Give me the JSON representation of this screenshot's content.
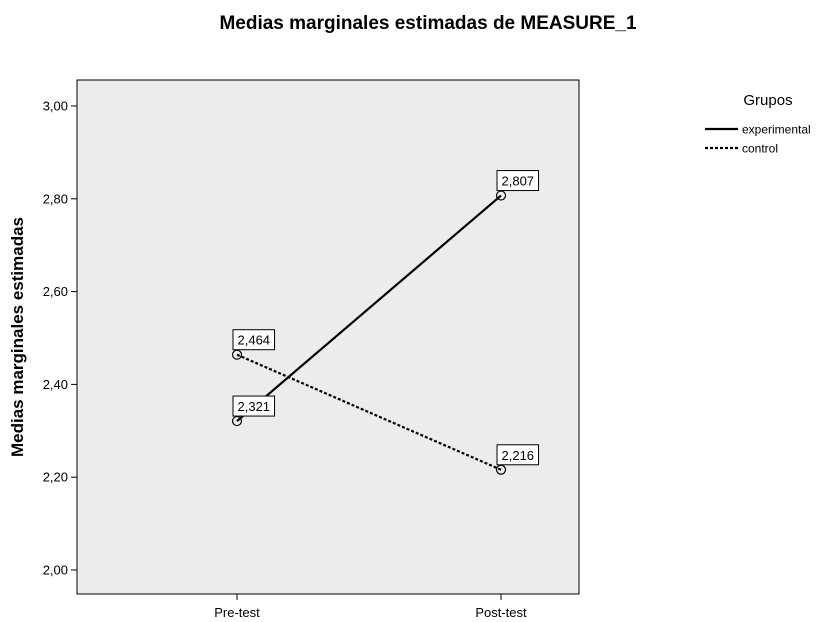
{
  "chart_data": {
    "type": "line",
    "title": "Medias marginales estimadas de MEASURE_1",
    "ylabel": "Medias marginales estimadas",
    "xlabel": "",
    "categories": [
      "Pre-test",
      "Post-test"
    ],
    "ylim": [
      2.0,
      3.0
    ],
    "yticks": [
      2.0,
      2.2,
      2.4,
      2.6,
      2.8,
      3.0
    ],
    "ytick_labels": [
      "2,00",
      "2,20",
      "2,40",
      "2,60",
      "2,80",
      "3,00"
    ],
    "grid": false,
    "plot_background": "#ececec",
    "legend": {
      "title": "Grupos",
      "placement": "right"
    },
    "series": [
      {
        "name": "experimental",
        "values": [
          2.321,
          2.807
        ],
        "labels": [
          "2,321",
          "2,807"
        ],
        "line_style": "solid",
        "color": "#000000"
      },
      {
        "name": "control",
        "values": [
          2.464,
          2.216
        ],
        "labels": [
          "2,464",
          "2,216"
        ],
        "line_style": "dotted",
        "color": "#000000"
      }
    ]
  }
}
